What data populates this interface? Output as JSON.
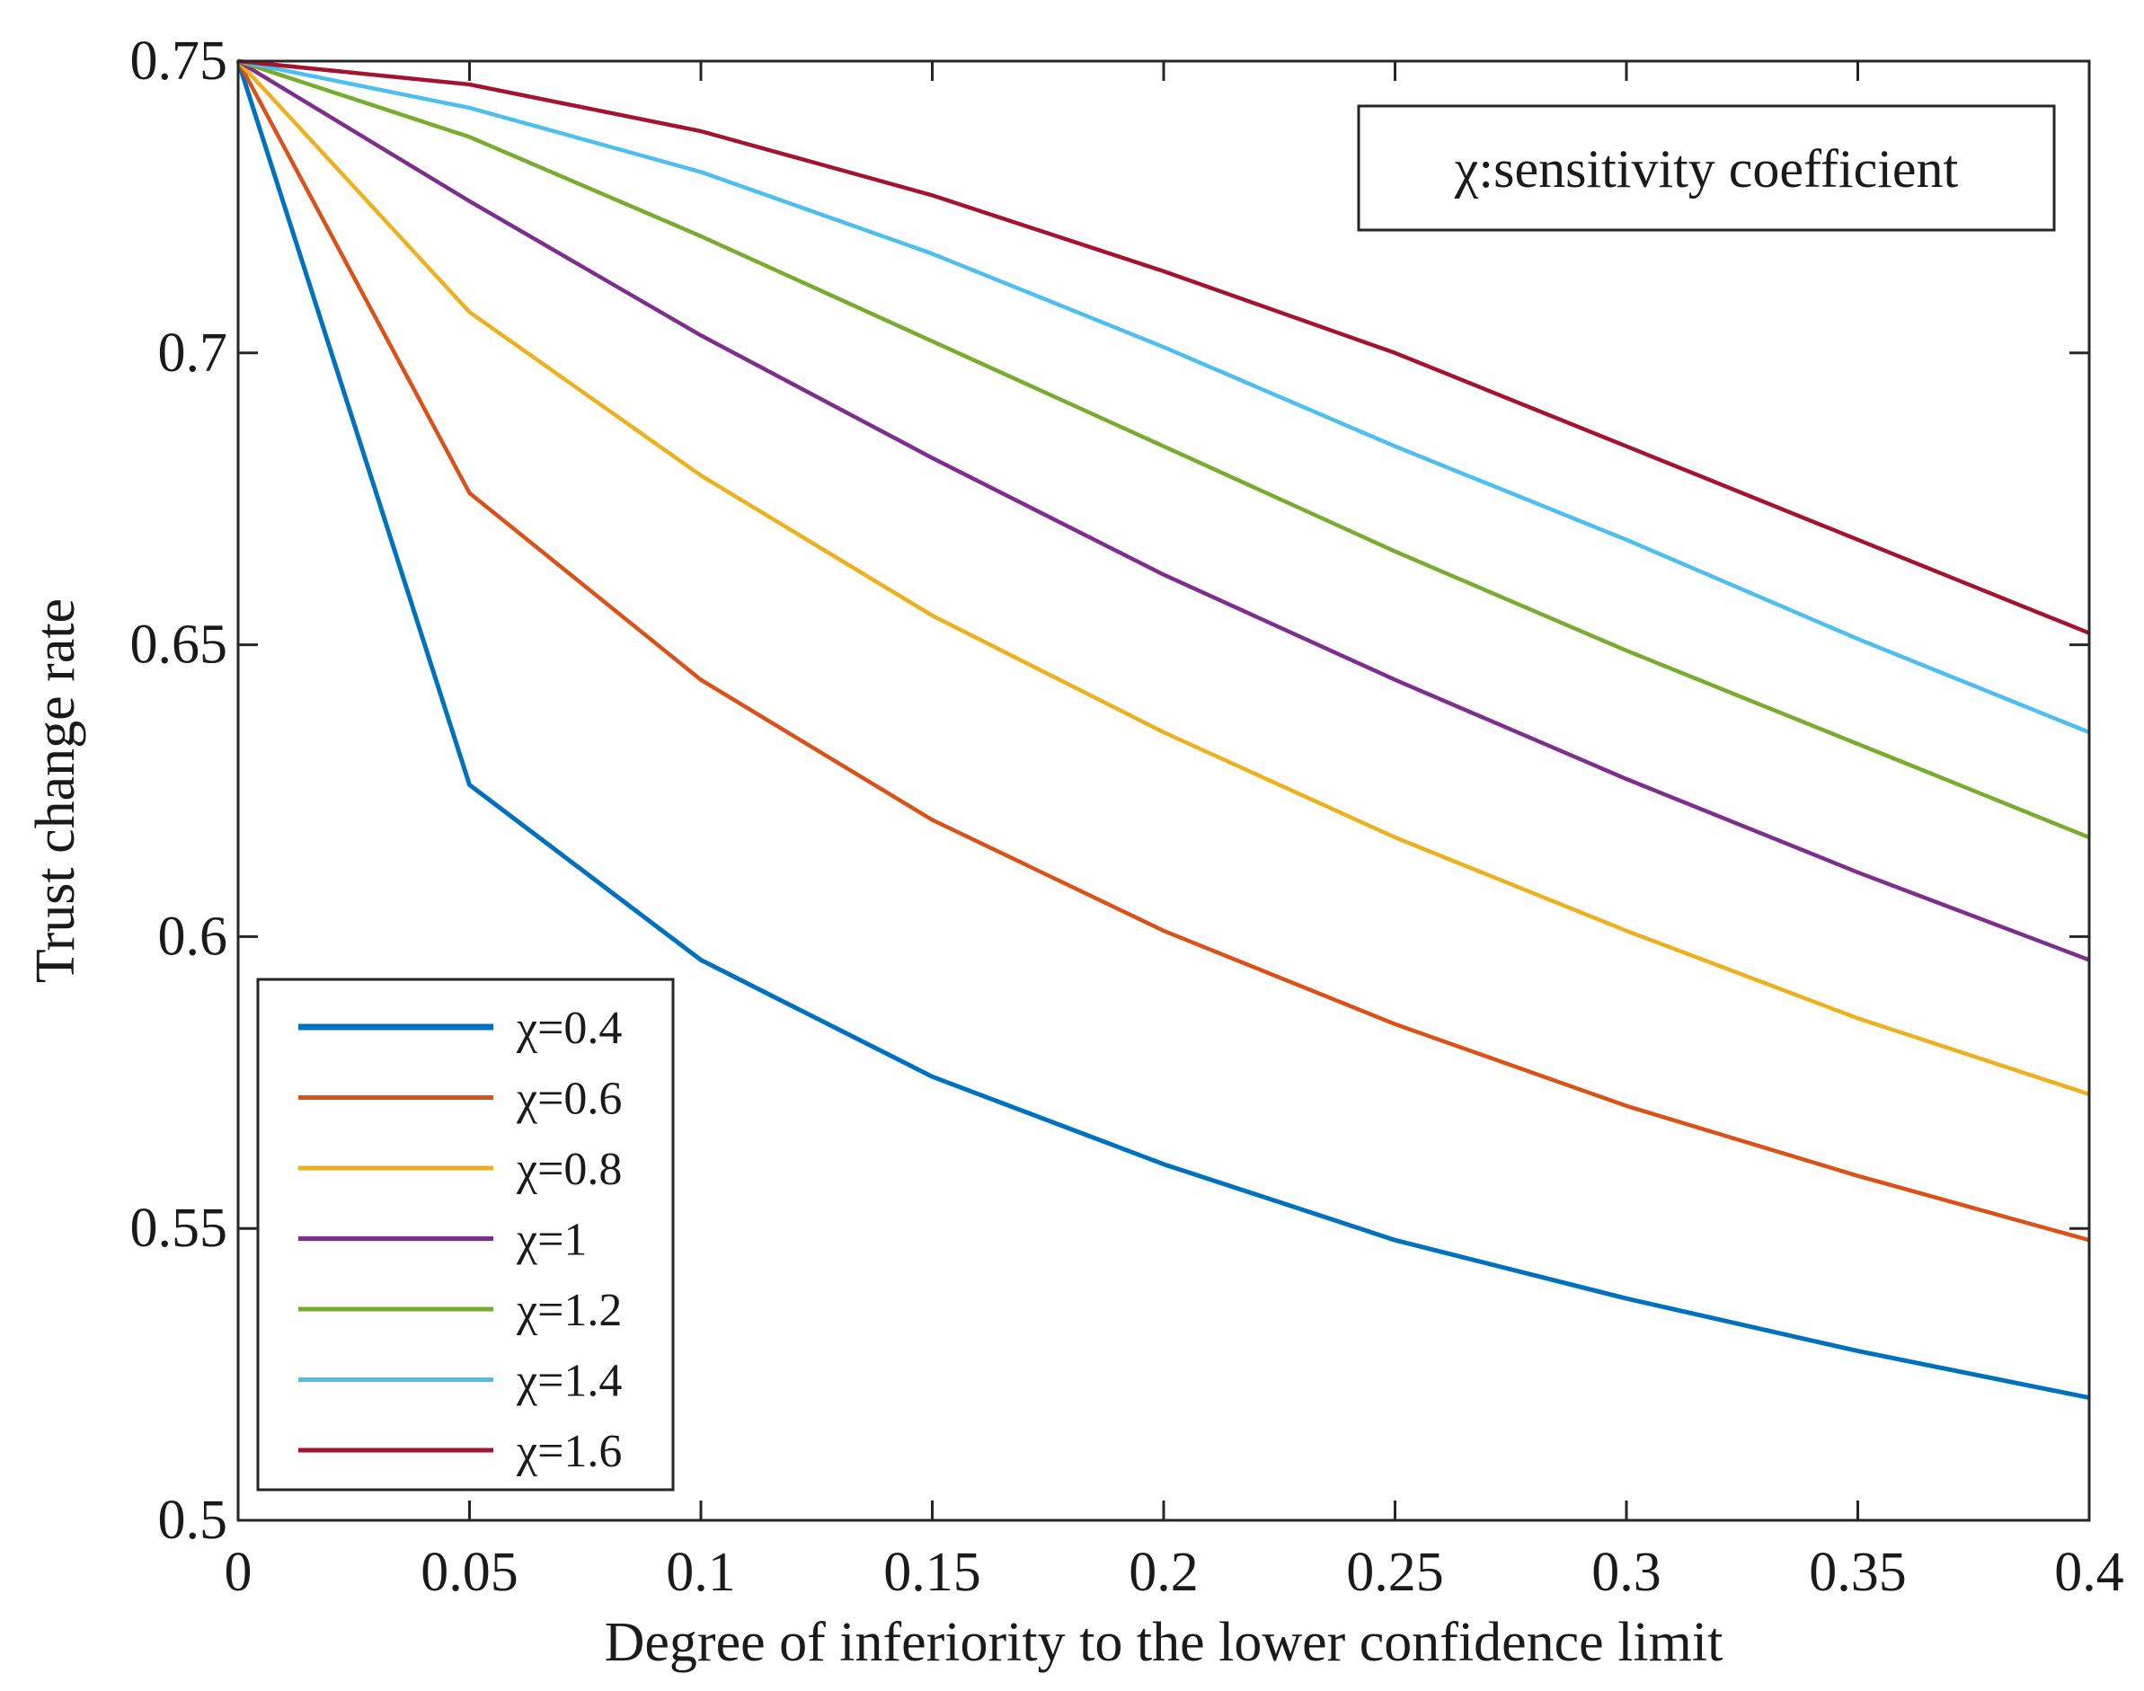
{
  "chart_data": {
    "type": "line",
    "title": "",
    "xlabel": "Degree of inferiority to the lower confidence limit",
    "ylabel": "Trust change rate",
    "xlim": [
      0,
      0.4
    ],
    "ylim": [
      0.5,
      0.75
    ],
    "x": [
      0,
      0.05,
      0.1,
      0.15,
      0.2,
      0.25,
      0.3,
      0.35,
      0.4
    ],
    "xticks": [
      0,
      0.05,
      0.1,
      0.15,
      0.2,
      0.25,
      0.3,
      0.35,
      0.4
    ],
    "xtick_labels": [
      "0",
      "0.05",
      "0.1",
      "0.15",
      "0.2",
      "0.25",
      "0.3",
      "0.35",
      "0.4"
    ],
    "yticks": [
      0.5,
      0.55,
      0.6,
      0.65,
      0.7,
      0.75
    ],
    "ytick_labels": [
      "0.5",
      "0.55",
      "0.6",
      "0.65",
      "0.7",
      "0.75"
    ],
    "grid": false,
    "legend_position": "bottom-left",
    "annotation": "χ:sensitivity coefficient",
    "series": [
      {
        "name": "χ=0.4",
        "color": "#0072BD",
        "values": [
          0.75,
          0.626,
          0.596,
          0.576,
          0.561,
          0.548,
          0.538,
          0.529,
          0.521
        ]
      },
      {
        "name": "χ=0.6",
        "color": "#D95319",
        "values": [
          0.75,
          0.676,
          0.644,
          0.62,
          0.601,
          0.585,
          0.571,
          0.559,
          0.548
        ]
      },
      {
        "name": "χ=0.8",
        "color": "#EDB120",
        "values": [
          0.75,
          0.707,
          0.679,
          0.655,
          0.635,
          0.617,
          0.601,
          0.586,
          0.573
        ]
      },
      {
        "name": "χ=1",
        "color": "#7E2F8E",
        "values": [
          0.75,
          0.726,
          0.703,
          0.682,
          0.662,
          0.644,
          0.627,
          0.611,
          0.596
        ]
      },
      {
        "name": "χ=1.2",
        "color": "#77AC30",
        "values": [
          0.75,
          0.737,
          0.72,
          0.702,
          0.684,
          0.666,
          0.649,
          0.633,
          0.617
        ]
      },
      {
        "name": "χ=1.4",
        "color": "#4DBEEE",
        "values": [
          0.75,
          0.742,
          0.731,
          0.717,
          0.701,
          0.684,
          0.668,
          0.651,
          0.635
        ]
      },
      {
        "name": "χ=1.6",
        "color": "#A2142F",
        "values": [
          0.75,
          0.746,
          0.738,
          0.727,
          0.714,
          0.7,
          0.684,
          0.668,
          0.652
        ]
      }
    ]
  }
}
